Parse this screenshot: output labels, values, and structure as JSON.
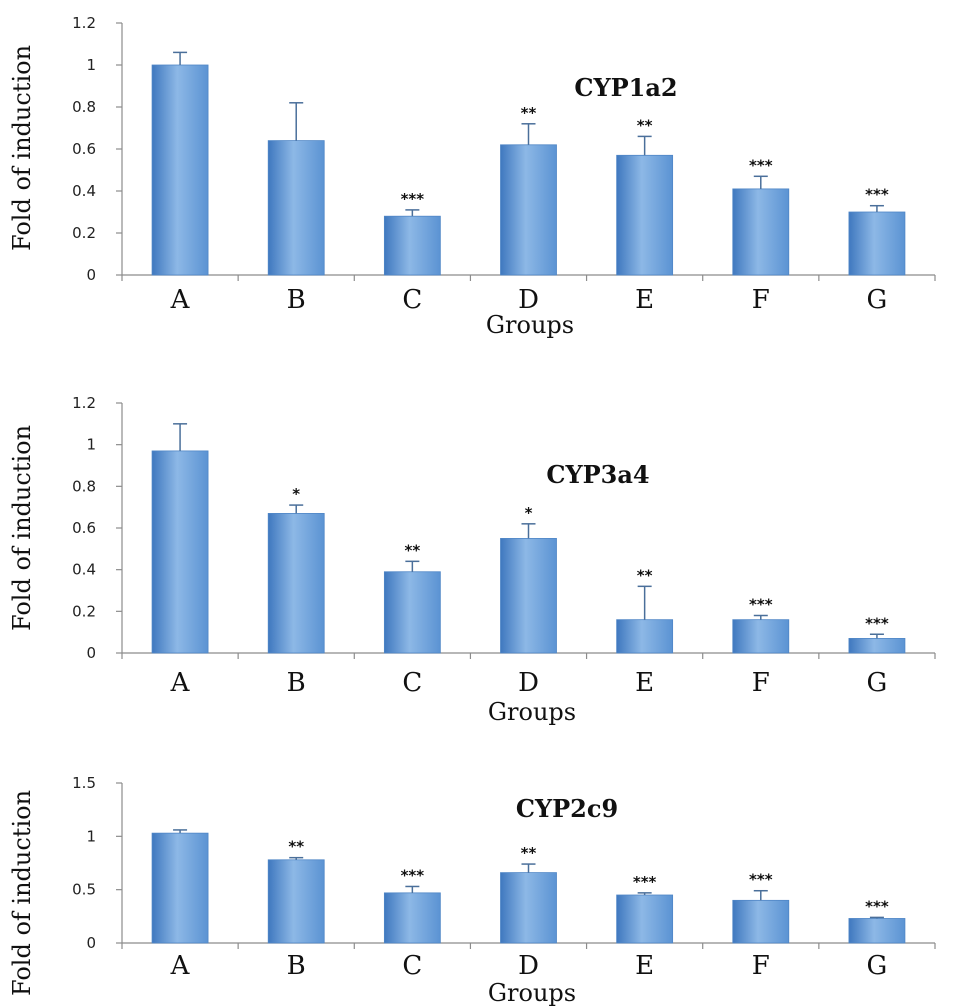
{
  "colors": {
    "bar_light": "#8db8e6",
    "bar_mid": "#5b93d3",
    "bar_dark": "#3f78bf",
    "axis": "#8c8c8c"
  },
  "chart_data": [
    {
      "type": "bar",
      "title": "CYP1a2",
      "xlabel": "Groups",
      "ylabel": "Fold of induction",
      "categories": [
        "A",
        "B",
        "C",
        "D",
        "E",
        "F",
        "G"
      ],
      "values": [
        1.0,
        0.64,
        0.28,
        0.62,
        0.57,
        0.41,
        0.3
      ],
      "errors": [
        0.06,
        0.18,
        0.03,
        0.1,
        0.09,
        0.06,
        0.03
      ],
      "significance": [
        "",
        "",
        "***",
        "**",
        "**",
        "***",
        "***"
      ],
      "ylim": [
        0,
        1.2
      ],
      "yticks": [
        "0",
        "0.2",
        "0.4",
        "0.6",
        "0.8",
        "1",
        "1.2"
      ],
      "ytick_values": [
        0,
        0.2,
        0.4,
        0.6,
        0.8,
        1.0,
        1.2
      ],
      "grid": false,
      "legend": "none"
    },
    {
      "type": "bar",
      "title": "CYP3a4",
      "xlabel": "Groups",
      "ylabel": "Fold of induction",
      "categories": [
        "A",
        "B",
        "C",
        "D",
        "E",
        "F",
        "G"
      ],
      "values": [
        0.97,
        0.67,
        0.39,
        0.55,
        0.16,
        0.16,
        0.07
      ],
      "errors": [
        0.13,
        0.04,
        0.05,
        0.07,
        0.16,
        0.02,
        0.02
      ],
      "significance": [
        "",
        "*",
        "**",
        "*",
        "**",
        "***",
        "***"
      ],
      "ylim": [
        0,
        1.2
      ],
      "yticks": [
        "0",
        "0.2",
        "0.4",
        "0.6",
        "0.8",
        "1",
        "1.2"
      ],
      "ytick_values": [
        0,
        0.2,
        0.4,
        0.6,
        0.8,
        1.0,
        1.2
      ],
      "grid": false,
      "legend": "none"
    },
    {
      "type": "bar",
      "title": "CYP2c9",
      "xlabel": "Groups",
      "ylabel": "Fold of induction",
      "categories": [
        "A",
        "B",
        "C",
        "D",
        "E",
        "F",
        "G"
      ],
      "values": [
        1.03,
        0.78,
        0.47,
        0.66,
        0.45,
        0.4,
        0.23
      ],
      "errors": [
        0.03,
        0.02,
        0.06,
        0.08,
        0.02,
        0.09,
        0.01
      ],
      "significance": [
        "",
        "**",
        "***",
        "**",
        "***",
        "***",
        "***"
      ],
      "ylim": [
        0,
        1.5
      ],
      "yticks": [
        "0",
        "0.5",
        "1",
        "1.5"
      ],
      "ytick_values": [
        0,
        0.5,
        1.0,
        1.5
      ],
      "grid": false,
      "legend": "none"
    }
  ]
}
